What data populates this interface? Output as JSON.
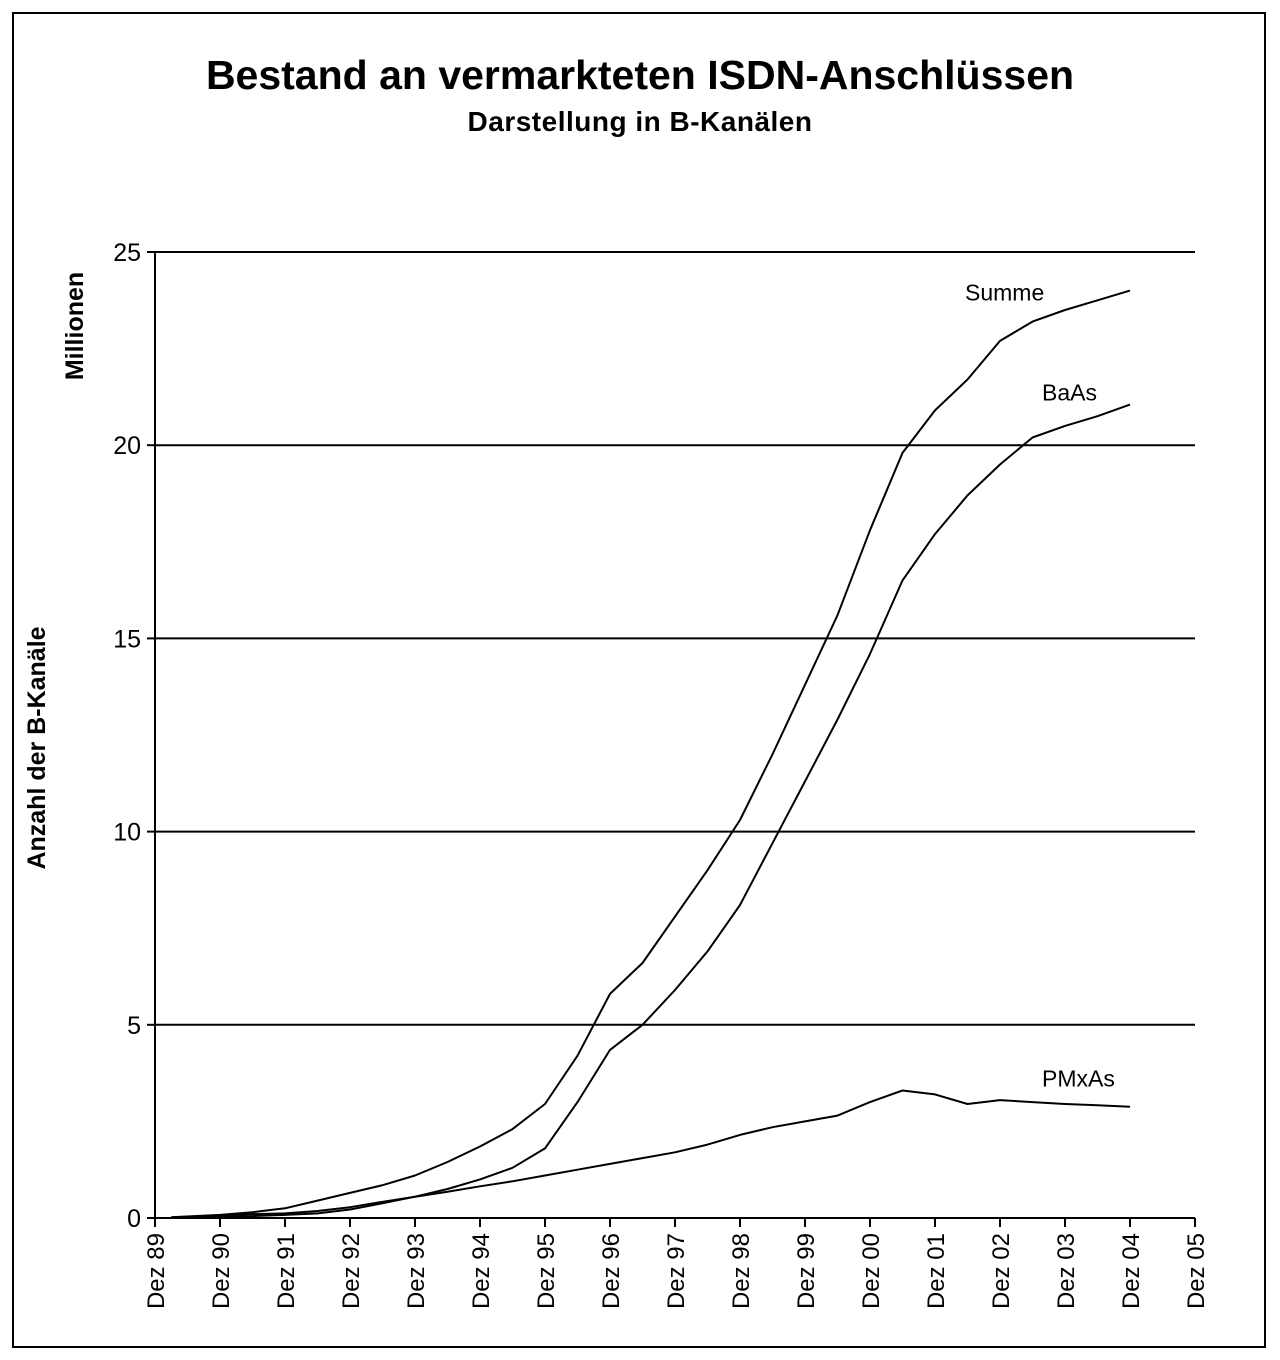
{
  "chart_data": {
    "type": "line",
    "title": "Bestand an vermarkteten ISDN-Anschlüssen",
    "subtitle": "Darstellung in B-Kanälen",
    "ylabel": "Anzahl der B-Kanäle",
    "yunit": "Millionen",
    "ylim": [
      0,
      25
    ],
    "yticks": [
      0,
      5,
      10,
      15,
      20,
      25
    ],
    "x_start_year": 1989,
    "x_end_year": 2005,
    "xtick_labels": [
      "Dez 89",
      "Dez 90",
      "Dez 91",
      "Dez 92",
      "Dez 93",
      "Dez 94",
      "Dez 95",
      "Dez 96",
      "Dez 97",
      "Dez 98",
      "Dez 99",
      "Dez 00",
      "Dez 01",
      "Dez 02",
      "Dez 03",
      "Dez 04",
      "Dez 05"
    ],
    "grid": "horizontal",
    "x": [
      1989.25,
      1990.0,
      1990.5,
      1991.0,
      1991.5,
      1992.0,
      1992.5,
      1993.0,
      1993.5,
      1994.0,
      1994.5,
      1995.0,
      1995.5,
      1996.0,
      1996.5,
      1997.0,
      1997.5,
      1998.0,
      1998.5,
      1999.0,
      1999.5,
      2000.0,
      2000.5,
      2001.0,
      2001.5,
      2002.0,
      2002.5,
      2003.0,
      2003.5,
      2004.0
    ],
    "series": [
      {
        "name": "Summe",
        "label": "Summe",
        "values": [
          0.02,
          0.08,
          0.15,
          0.25,
          0.45,
          0.65,
          0.85,
          1.1,
          1.45,
          1.85,
          2.3,
          2.95,
          4.2,
          5.8,
          6.6,
          7.8,
          9.0,
          10.3,
          12.0,
          13.8,
          15.6,
          17.8,
          19.8,
          20.9,
          21.7,
          22.7,
          23.2,
          23.5,
          23.75,
          24.0
        ]
      },
      {
        "name": "BaAs",
        "label": "BaAs",
        "values": [
          0.0,
          0.02,
          0.05,
          0.08,
          0.12,
          0.22,
          0.38,
          0.55,
          0.75,
          1.0,
          1.3,
          1.8,
          3.0,
          4.35,
          5.0,
          5.9,
          6.9,
          8.1,
          9.7,
          11.3,
          12.9,
          14.6,
          16.5,
          17.7,
          18.7,
          19.5,
          20.2,
          20.5,
          20.75,
          21.05
        ]
      },
      {
        "name": "PMxAs",
        "label": "PMxAs",
        "values": [
          0.02,
          0.06,
          0.1,
          0.12,
          0.18,
          0.28,
          0.42,
          0.55,
          0.68,
          0.82,
          0.95,
          1.1,
          1.25,
          1.4,
          1.55,
          1.7,
          1.9,
          2.15,
          2.35,
          2.5,
          2.65,
          3.0,
          3.3,
          3.2,
          2.95,
          3.05,
          3.0,
          2.95,
          2.92,
          2.88
        ]
      }
    ],
    "colors": {
      "line": "#000000",
      "grid": "#000000",
      "background": "#ffffff"
    }
  }
}
